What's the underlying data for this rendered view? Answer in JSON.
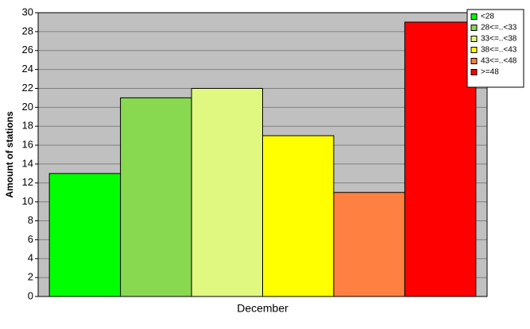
{
  "chart_data": {
    "type": "bar",
    "y_label": "Amount of stations",
    "categories": [
      "December"
    ],
    "series": [
      {
        "name": "<28",
        "color": "#00ff00",
        "values": [
          13
        ]
      },
      {
        "name": "28<=..<33",
        "color": "#88d850",
        "values": [
          21
        ]
      },
      {
        "name": "33<=..<38",
        "color": "#e0f880",
        "values": [
          22
        ]
      },
      {
        "name": "38<=..<43",
        "color": "#ffff00",
        "values": [
          17
        ]
      },
      {
        "name": "43<=..<48",
        "color": "#ff8040",
        "values": [
          11
        ]
      },
      {
        "name": ">=48",
        "color": "#ff0000",
        "values": [
          29
        ]
      }
    ],
    "ylim": [
      0,
      30
    ],
    "yticks": [
      0,
      2,
      4,
      6,
      8,
      10,
      12,
      14,
      16,
      18,
      20,
      22,
      24,
      26,
      28,
      30
    ],
    "grid": true,
    "legend": "top-right"
  }
}
